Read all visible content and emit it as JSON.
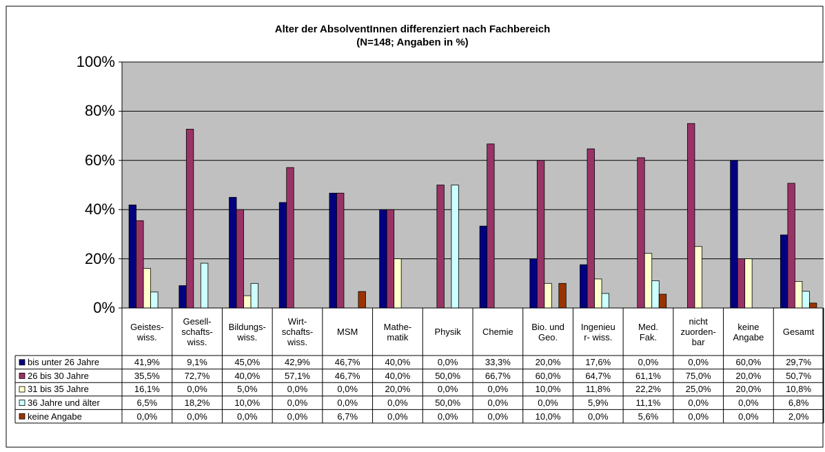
{
  "chart_data": {
    "type": "bar",
    "title": "Alter der AbsolventInnen differenziert nach Fachbereich",
    "subtitle": "(N=148; Angaben in %)",
    "categories": [
      "Geistes-\nwiss.",
      "Gesell-\nschafts-\nwiss.",
      "Bildungs-\nwiss.",
      "Wirt-\nschafts-\nwiss.",
      "MSM",
      "Mathe-\nmatik",
      "Physik",
      "Chemie",
      "Bio. und\nGeo.",
      "Ingenieu\nr- wiss.",
      "Med.\nFak.",
      "nicht\nzuorden-\nbar",
      "keine\nAngabe",
      "Gesamt"
    ],
    "series": [
      {
        "name": "bis unter 26 Jahre",
        "color": "#000080",
        "values": [
          41.9,
          9.1,
          45.0,
          42.9,
          46.7,
          40.0,
          0.0,
          33.3,
          20.0,
          17.6,
          0.0,
          0.0,
          60.0,
          29.7
        ],
        "value_labels": [
          "41,9%",
          "9,1%",
          "45,0%",
          "42,9%",
          "46,7%",
          "40,0%",
          "0,0%",
          "33,3%",
          "20,0%",
          "17,6%",
          "0,0%",
          "0,0%",
          "60,0%",
          "29,7%"
        ]
      },
      {
        "name": "26 bis 30 Jahre",
        "color": "#993366",
        "values": [
          35.5,
          72.7,
          40.0,
          57.1,
          46.7,
          40.0,
          50.0,
          66.7,
          60.0,
          64.7,
          61.1,
          75.0,
          20.0,
          50.7
        ],
        "value_labels": [
          "35,5%",
          "72,7%",
          "40,0%",
          "57,1%",
          "46,7%",
          "40,0%",
          "50,0%",
          "66,7%",
          "60,0%",
          "64,7%",
          "61,1%",
          "75,0%",
          "20,0%",
          "50,7%"
        ]
      },
      {
        "name": "31 bis 35 Jahre",
        "color": "#FFFFCC",
        "values": [
          16.1,
          0.0,
          5.0,
          0.0,
          0.0,
          20.0,
          0.0,
          0.0,
          10.0,
          11.8,
          22.2,
          25.0,
          20.0,
          10.8
        ],
        "value_labels": [
          "16,1%",
          "0,0%",
          "5,0%",
          "0,0%",
          "0,0%",
          "20,0%",
          "0,0%",
          "0,0%",
          "10,0%",
          "11,8%",
          "22,2%",
          "25,0%",
          "20,0%",
          "10,8%"
        ]
      },
      {
        "name": "36 Jahre und älter",
        "color": "#CCFFFF",
        "values": [
          6.5,
          18.2,
          10.0,
          0.0,
          0.0,
          0.0,
          50.0,
          0.0,
          0.0,
          5.9,
          11.1,
          0.0,
          0.0,
          6.8
        ],
        "value_labels": [
          "6,5%",
          "18,2%",
          "10,0%",
          "0,0%",
          "0,0%",
          "0,0%",
          "50,0%",
          "0,0%",
          "0,0%",
          "5,9%",
          "11,1%",
          "0,0%",
          "0,0%",
          "6,8%"
        ]
      },
      {
        "name": "keine Angabe",
        "color": "#993300",
        "values": [
          0.0,
          0.0,
          0.0,
          0.0,
          6.7,
          0.0,
          0.0,
          0.0,
          10.0,
          0.0,
          5.6,
          0.0,
          0.0,
          2.0
        ],
        "value_labels": [
          "0,0%",
          "0,0%",
          "0,0%",
          "0,0%",
          "6,7%",
          "0,0%",
          "0,0%",
          "0,0%",
          "10,0%",
          "0,0%",
          "5,6%",
          "0,0%",
          "0,0%",
          "2,0%"
        ]
      }
    ],
    "ylim": [
      0,
      100
    ],
    "yticks": [
      {
        "value": 0,
        "label": "0%"
      },
      {
        "value": 20,
        "label": "20%"
      },
      {
        "value": 40,
        "label": "40%"
      },
      {
        "value": 60,
        "label": "60%"
      },
      {
        "value": 80,
        "label": "80%"
      },
      {
        "value": 100,
        "label": "100%"
      }
    ],
    "grid": true
  }
}
